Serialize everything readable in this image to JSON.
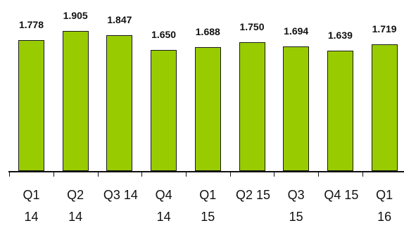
{
  "chart_data": {
    "type": "bar",
    "categories": [
      "Q1 14",
      "Q2 14",
      "Q3 14",
      "Q4 14",
      "Q1 15",
      "Q2 15",
      "Q3 15",
      "Q4 15",
      "Q1 16"
    ],
    "values": [
      1.778,
      1.905,
      1.847,
      1.65,
      1.688,
      1.75,
      1.694,
      1.639,
      1.719
    ],
    "value_labels": [
      "1.778",
      "1.905",
      "1.847",
      "1.650",
      "1.688",
      "1.750",
      "1.694",
      "1.639",
      "1.719"
    ],
    "color": "#99cc00"
  }
}
